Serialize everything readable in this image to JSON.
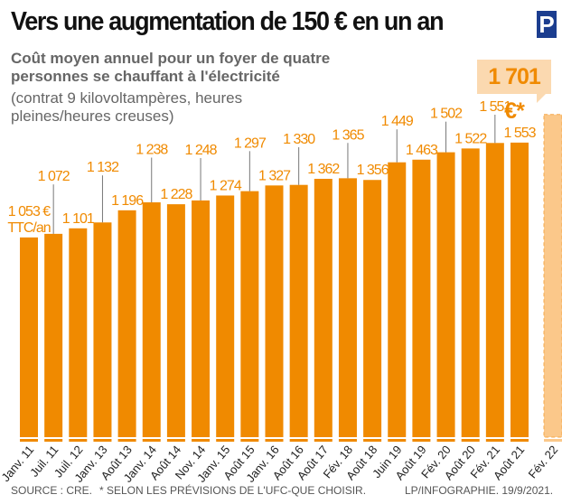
{
  "chart_data": {
    "type": "bar",
    "title": "Vers une augmentation de 150 € en un an",
    "subtitle": "Coût moyen annuel pour un foyer de quatre personnes se chauffant à l'électricité",
    "subtitle_note": "(contrat 9 kilovoltampères, heures pleines/heures creuses)",
    "categories": [
      "Janv. 11",
      "Juil. 11",
      "Juil. 12",
      "Janv. 13",
      "Août 13",
      "Janv. 14",
      "Août 14",
      "Nov. 14",
      "Janv. 15",
      "Août 15",
      "Janv. 16",
      "Août 16",
      "Août 17",
      "Fév. 18",
      "Août 18",
      "Juin 19",
      "Août 19",
      "Fév. 20",
      "Août 20",
      "Fév. 21",
      "Août 21",
      "Fév. 22"
    ],
    "values": [
      1053,
      1072,
      1101,
      1132,
      1196,
      1238,
      1228,
      1248,
      1274,
      1297,
      1327,
      1330,
      1362,
      1365,
      1356,
      1449,
      1463,
      1502,
      1522,
      1551,
      1553,
      1701
    ],
    "value_labels": [
      "1 053 €",
      "1 072",
      "1 101",
      "1 132",
      "1 196",
      "1 238",
      "1 228",
      "1 248",
      "1 274",
      "1 297",
      "1 327",
      "1 330",
      "1 362",
      "1 365",
      "1 356",
      "1 449",
      "1 463",
      "1 502",
      "1 522",
      "1 551",
      "1 553",
      "1 701 €*"
    ],
    "first_label_unit": "TTC/an",
    "projected_index": 21,
    "colors": {
      "bar": "#f08a00",
      "projected": "#fbc88a",
      "leader": "#777777"
    },
    "ylim": [
      0,
      1750
    ],
    "grid": false
  },
  "logo": "P",
  "footer": {
    "source": "SOURCE : CRE.",
    "note": "* SELON LES PRÉVISIONS DE L'UFC-QUE CHOISIR.",
    "credit": "LP/INFOGRAPHIE.  19/9/2021."
  }
}
